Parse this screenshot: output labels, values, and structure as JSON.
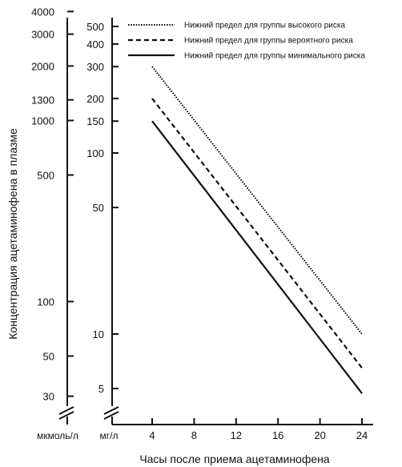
{
  "chart_data": {
    "type": "line",
    "xlabel": "Часы после приема ацетаминофена",
    "ylabel": "Концентрация ацетаминофена в плазме",
    "x_ticks": [
      4,
      8,
      12,
      16,
      20,
      24
    ],
    "xlim": [
      2,
      25
    ],
    "y_scale": "log",
    "axes": [
      {
        "unit": "мкмоль/л",
        "ticks": [
          30,
          50,
          100,
          500,
          1000,
          1300,
          2000,
          3000,
          4000
        ]
      },
      {
        "unit": "мг/л",
        "ticks": [
          5,
          10,
          50,
          100,
          150,
          200,
          300,
          400,
          500
        ]
      }
    ],
    "legend_position": "top-right",
    "series": [
      {
        "name": "Нижний предел для группы высокого риска",
        "style": "dotted",
        "x": [
          4,
          24
        ],
        "y": [
          300,
          10
        ]
      },
      {
        "name": "Нижний предел для группы вероятного риска",
        "style": "dashed",
        "x": [
          4,
          24
        ],
        "y": [
          200,
          6.5
        ]
      },
      {
        "name": "Нижний предел для группы минимального риска",
        "style": "solid",
        "x": [
          4,
          24
        ],
        "y": [
          150,
          4.7
        ]
      }
    ],
    "color": "#111111"
  }
}
